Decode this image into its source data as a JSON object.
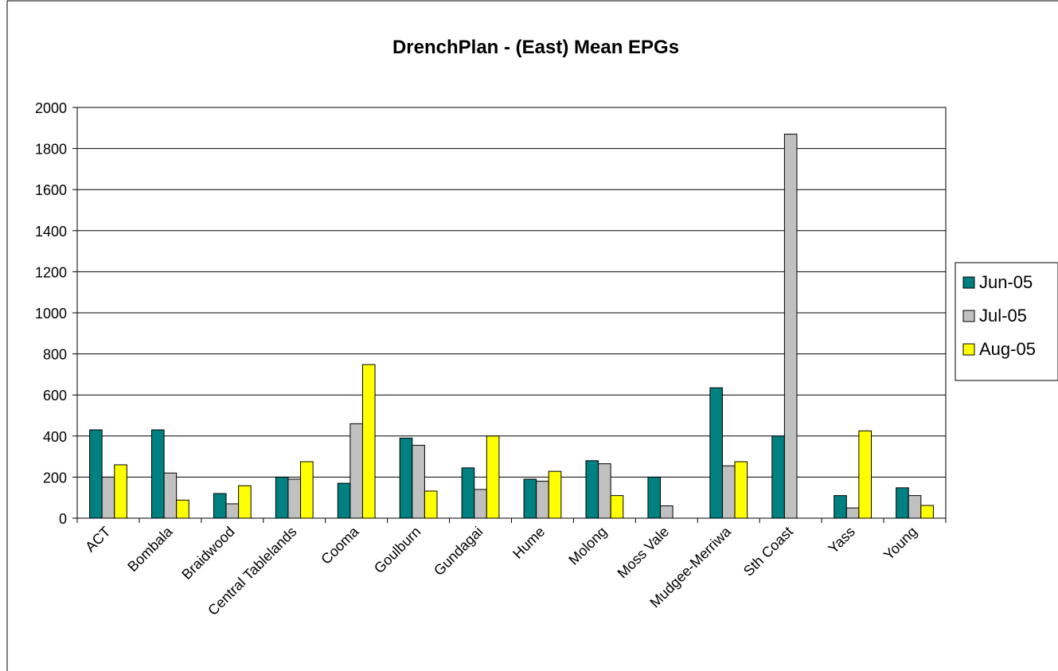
{
  "chart_data": {
    "type": "bar",
    "title": "DrenchPlan - (East)  Mean EPGs",
    "xlabel": "",
    "ylabel": "",
    "ylim": [
      0,
      2000
    ],
    "yticks": [
      0,
      200,
      400,
      600,
      800,
      1000,
      1200,
      1400,
      1600,
      1800,
      2000
    ],
    "grid": true,
    "legend_position": "right",
    "categories": [
      "ACT",
      "Bombala",
      "Braidwood",
      "Central Tablelands",
      "Cooma",
      "Goulburn",
      "Gundagai",
      "Hume",
      "Molong",
      "Moss Vale",
      "Mudgee-Merriwa",
      "Sth Coast",
      "Yass",
      "Young"
    ],
    "series": [
      {
        "name": "Jun-05",
        "color": "#008080",
        "values": [
          430,
          430,
          120,
          200,
          170,
          390,
          245,
          190,
          280,
          200,
          635,
          400,
          110,
          148
        ]
      },
      {
        "name": "Jul-05",
        "color": "#c0c0c0",
        "values": [
          200,
          220,
          70,
          190,
          460,
          355,
          140,
          180,
          265,
          60,
          255,
          1870,
          50,
          110
        ]
      },
      {
        "name": "Aug-05",
        "color": "#ffff00",
        "values": [
          260,
          88,
          158,
          275,
          748,
          132,
          400,
          228,
          110,
          0,
          275,
          0,
          425,
          62
        ]
      }
    ]
  }
}
